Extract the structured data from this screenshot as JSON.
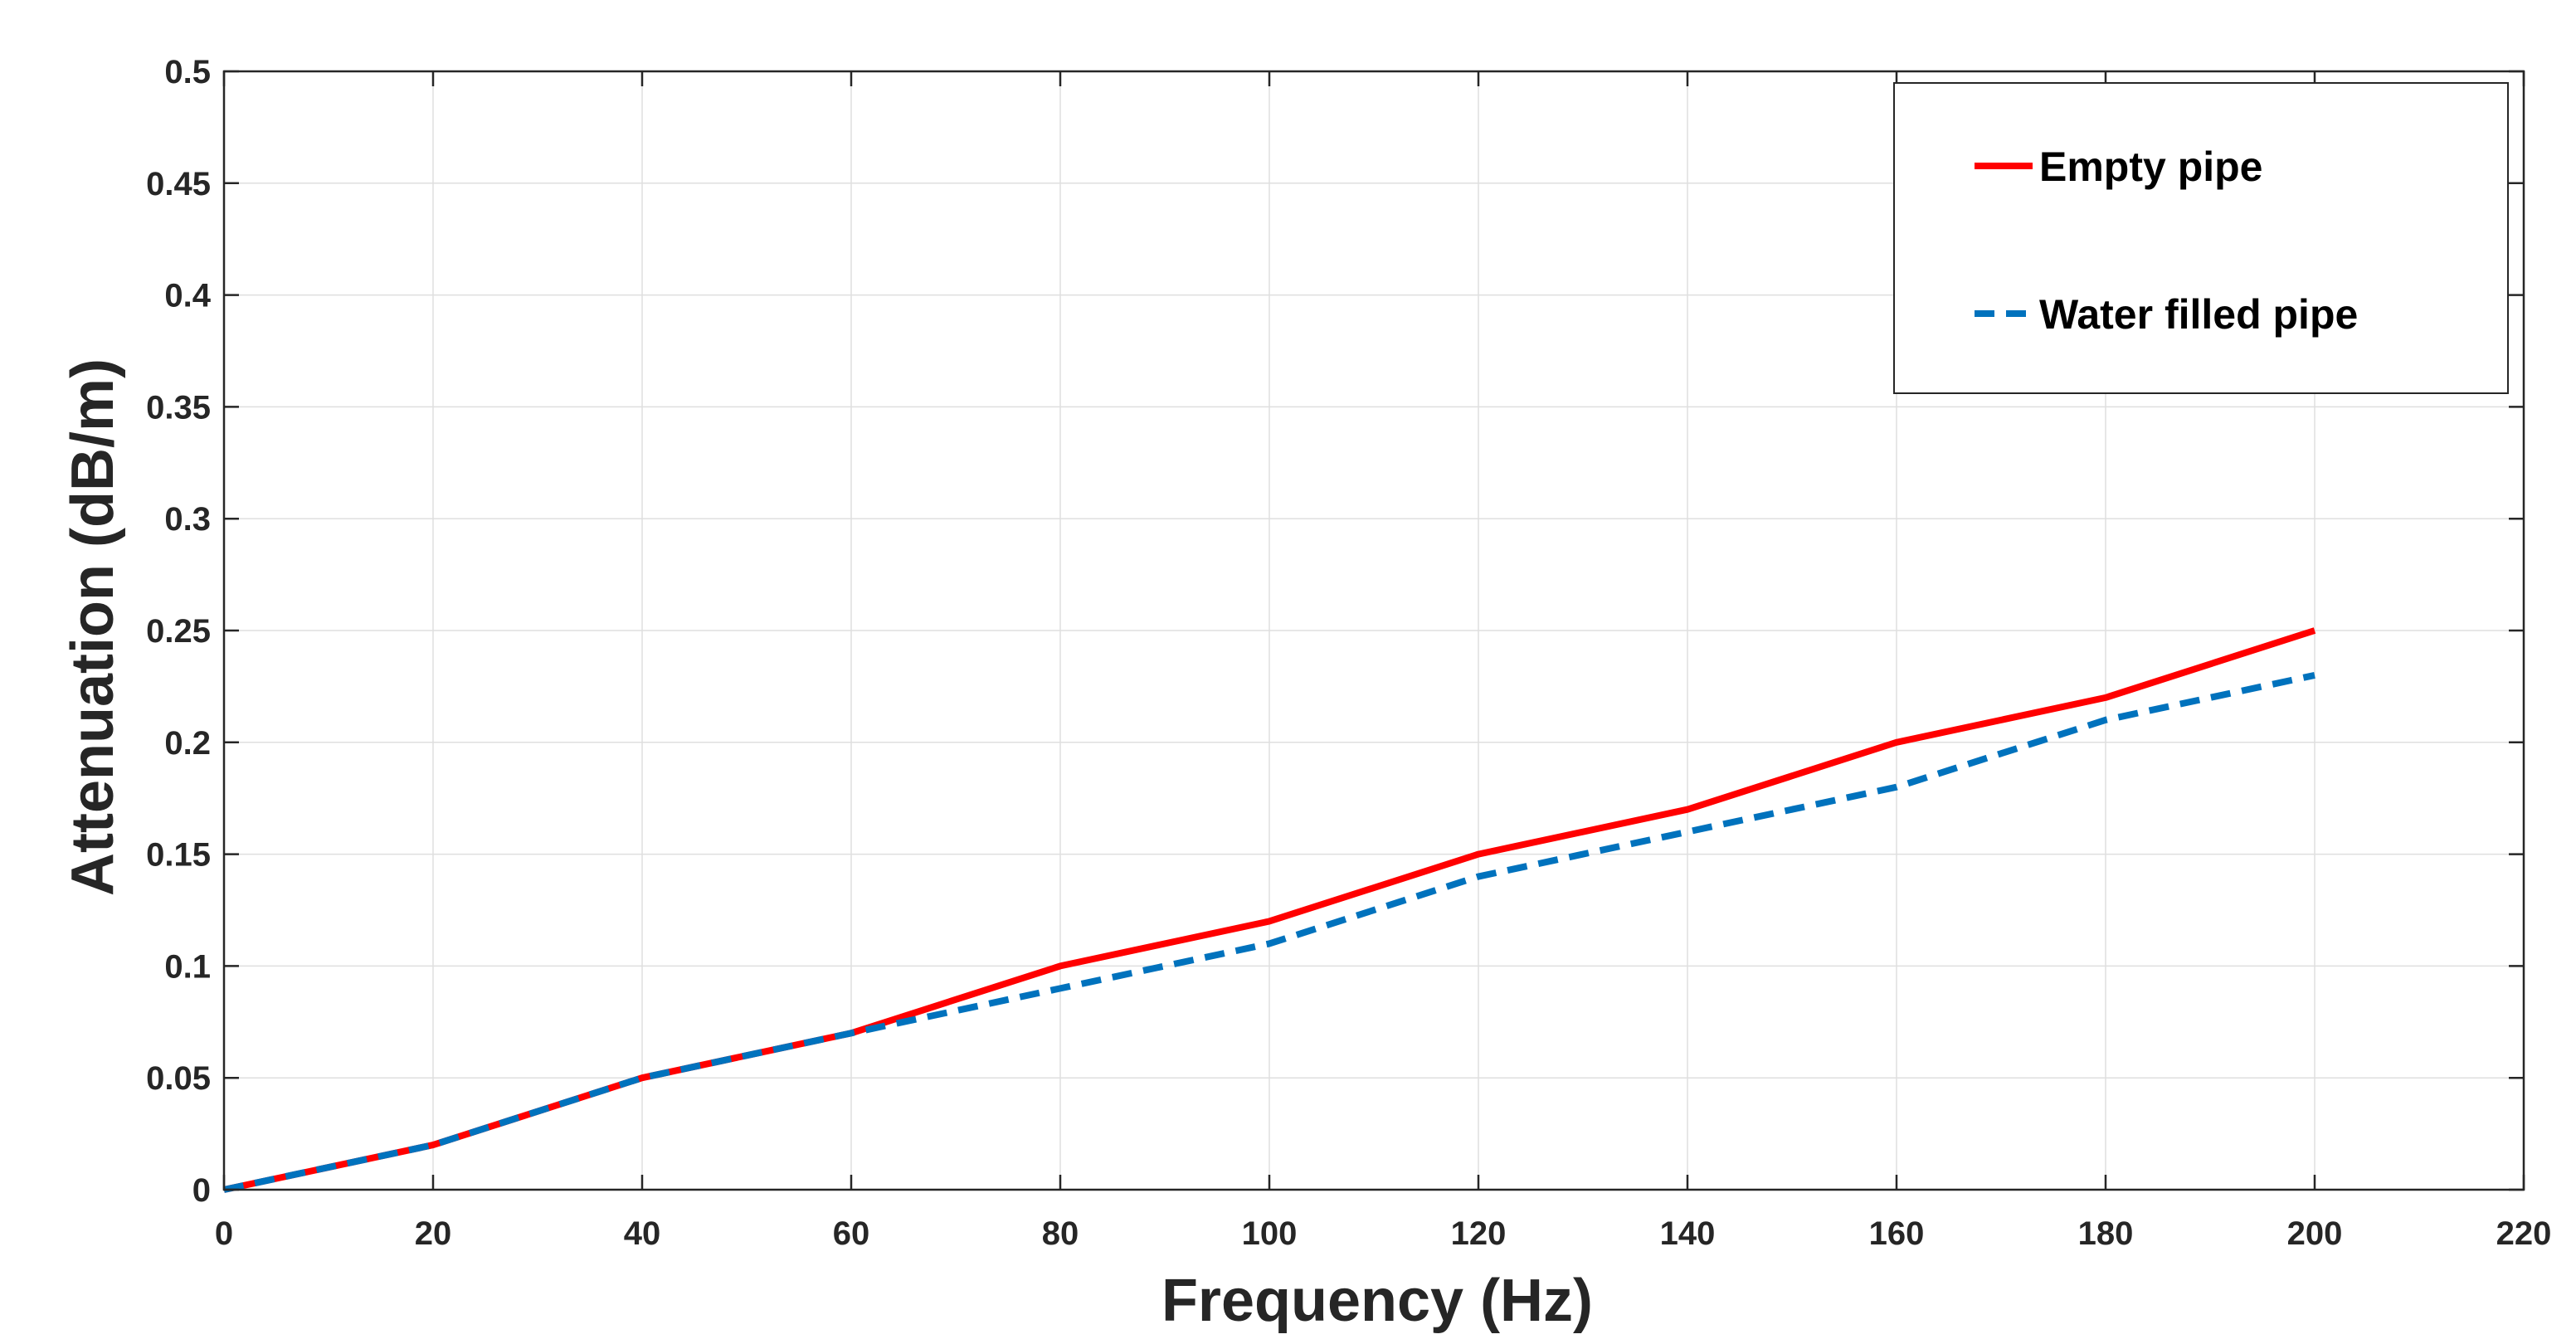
{
  "chart_data": {
    "type": "line",
    "xlabel": "Frequency (Hz)",
    "ylabel": "Attenuation (dB/m)",
    "xlim": [
      0,
      220
    ],
    "ylim": [
      0,
      0.5
    ],
    "x_ticks": [
      0,
      20,
      40,
      60,
      80,
      100,
      120,
      140,
      160,
      180,
      200,
      220
    ],
    "y_ticks": [
      0,
      0.05,
      0.1,
      0.15,
      0.2,
      0.25,
      0.3,
      0.35,
      0.4,
      0.45,
      0.5
    ],
    "x_tick_labels": [
      "0",
      "20",
      "40",
      "60",
      "80",
      "100",
      "120",
      "140",
      "160",
      "180",
      "200",
      "220"
    ],
    "y_tick_labels": [
      "0",
      "0.05",
      "0.1",
      "0.15",
      "0.2",
      "0.25",
      "0.3",
      "0.35",
      "0.4",
      "0.45",
      "0.5"
    ],
    "grid": true,
    "legend_position": "top-right",
    "x": [
      0,
      20,
      40,
      60,
      80,
      100,
      120,
      140,
      160,
      180,
      200
    ],
    "series": [
      {
        "name": "Empty pipe",
        "color": "#ff0000",
        "style": "solid",
        "values": [
          0,
          0.02,
          0.05,
          0.07,
          0.1,
          0.12,
          0.15,
          0.17,
          0.2,
          0.22,
          0.25
        ]
      },
      {
        "name": "Water filled pipe",
        "color": "#0072bd",
        "style": "dashed",
        "values": [
          0,
          0.02,
          0.05,
          0.07,
          0.09,
          0.11,
          0.14,
          0.16,
          0.18,
          0.21,
          0.23
        ]
      }
    ]
  }
}
